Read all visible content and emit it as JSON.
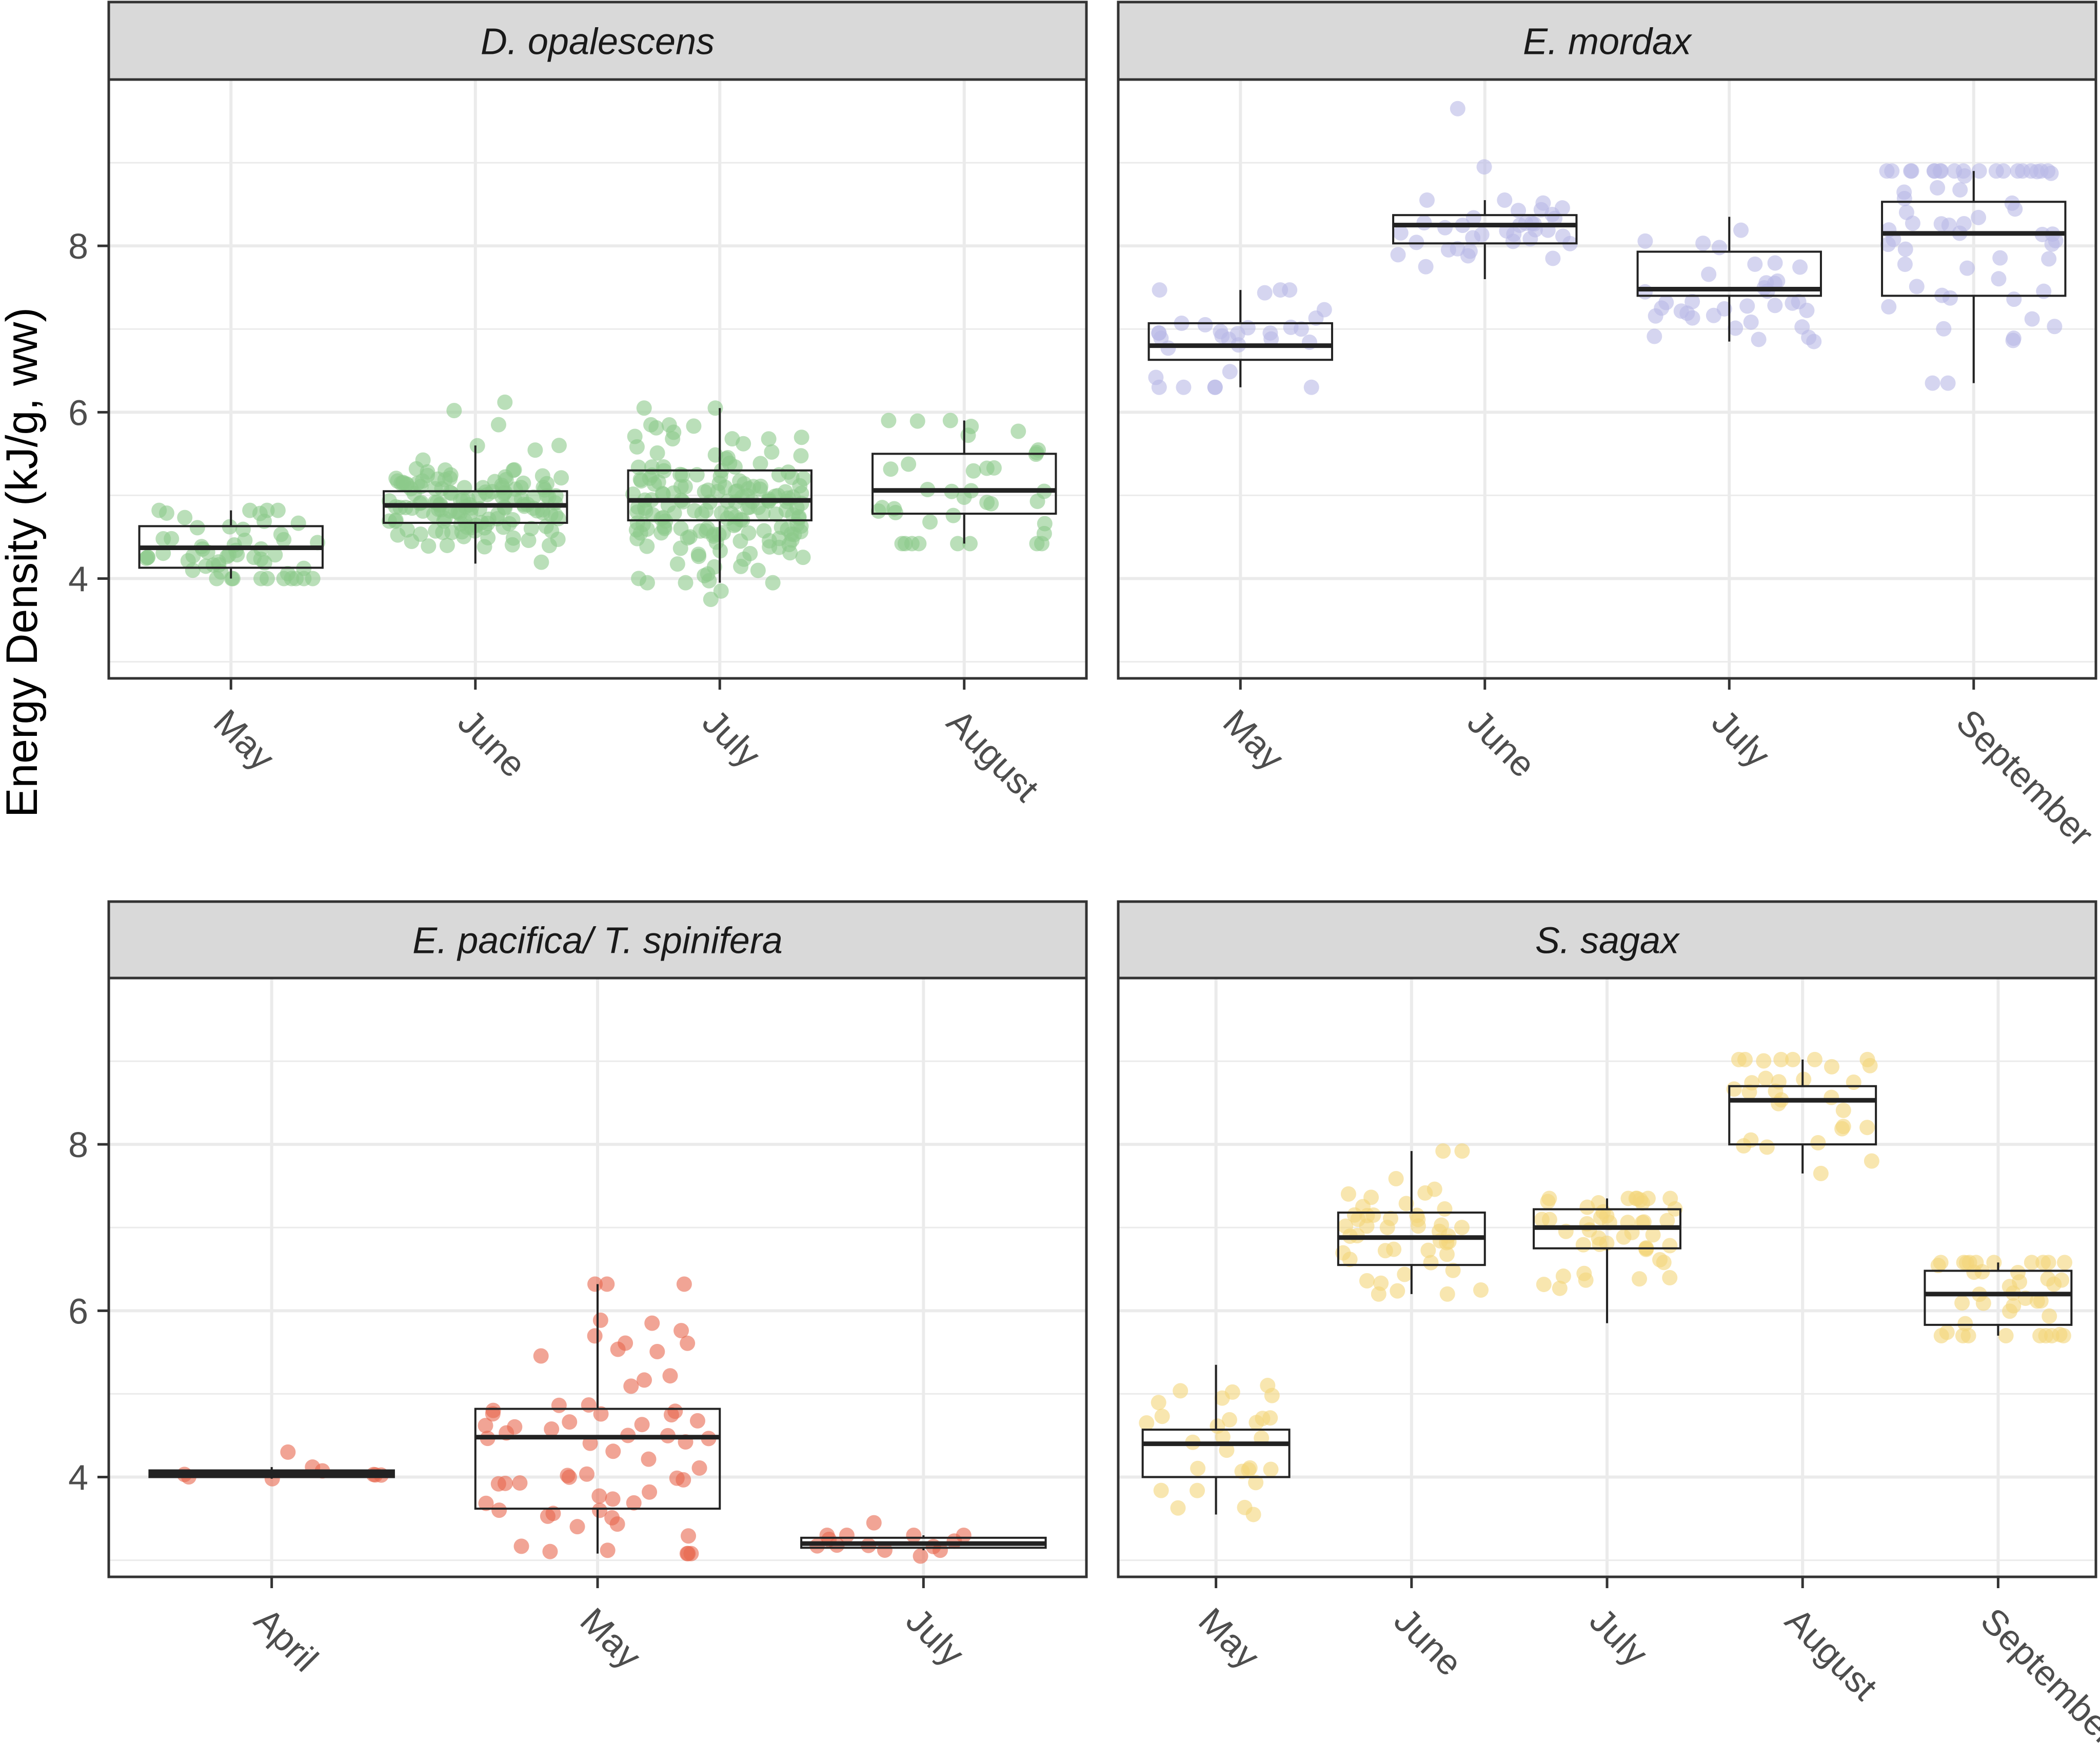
{
  "figure": {
    "y_axis_label": "Energy Density (kJ/g, ww)",
    "colors": {
      "D. opalescens": "#8cc98a",
      "E. mordax": "#b9b9e6",
      "E. pacifica/ T. spinifera": "#e8684f",
      "S. sagax": "#f3d57a",
      "strip": "#d9d9d9",
      "grid": "#ebebeb",
      "frame": "#333333"
    }
  },
  "chart_data": [
    {
      "type": "box",
      "title": "D. opalescens",
      "ylabel": "Energy Density (kJ/g, ww)",
      "ylim": [
        2.8,
        10.0
      ],
      "yticks": [
        4,
        6,
        8
      ],
      "categories": [
        "May",
        "June",
        "July",
        "August"
      ],
      "boxes": [
        {
          "category": "May",
          "min": 4.0,
          "q1": 4.13,
          "median": 4.37,
          "q3": 4.63,
          "max": 4.82,
          "n": 55
        },
        {
          "category": "June",
          "min": 4.18,
          "q1": 4.67,
          "median": 4.88,
          "q3": 5.05,
          "max": 5.6,
          "n": 140
        },
        {
          "category": "July",
          "min": 3.95,
          "q1": 4.7,
          "median": 4.94,
          "q3": 5.3,
          "max": 6.05,
          "n": 170
        },
        {
          "category": "August",
          "min": 4.42,
          "q1": 4.78,
          "median": 5.06,
          "q3": 5.5,
          "max": 5.9,
          "n": 38
        }
      ],
      "outliers": [
        {
          "category": "July",
          "value": 3.75
        },
        {
          "category": "July",
          "value": 3.85
        },
        {
          "category": "June",
          "value": 5.85
        },
        {
          "category": "June",
          "value": 6.02
        },
        {
          "category": "June",
          "value": 6.12
        }
      ]
    },
    {
      "type": "box",
      "title": "E. mordax",
      "ylabel": "Energy Density (kJ/g, ww)",
      "ylim": [
        2.8,
        10.0
      ],
      "yticks": [
        4,
        6,
        8
      ],
      "categories": [
        "May",
        "June",
        "July",
        "September"
      ],
      "boxes": [
        {
          "category": "May",
          "min": 6.3,
          "q1": 6.63,
          "median": 6.8,
          "q3": 7.07,
          "max": 7.47,
          "n": 30
        },
        {
          "category": "June",
          "min": 7.6,
          "q1": 8.03,
          "median": 8.25,
          "q3": 8.37,
          "max": 8.55,
          "n": 35
        },
        {
          "category": "July",
          "min": 6.85,
          "q1": 7.4,
          "median": 7.48,
          "q3": 7.93,
          "max": 8.35,
          "n": 35
        },
        {
          "category": "September",
          "min": 6.35,
          "q1": 7.4,
          "median": 8.15,
          "q3": 8.53,
          "max": 8.9,
          "n": 60
        }
      ],
      "outliers": [
        {
          "category": "June",
          "value": 9.65
        },
        {
          "category": "June",
          "value": 8.95
        }
      ]
    },
    {
      "type": "box",
      "title": "E. pacifica/ T. spinifera",
      "ylabel": "Energy Density (kJ/g, ww)",
      "ylim": [
        2.8,
        10.0
      ],
      "yticks": [
        4,
        6,
        8
      ],
      "categories": [
        "April",
        "May",
        "July"
      ],
      "boxes": [
        {
          "category": "April",
          "min": 3.98,
          "q1": 4.0,
          "median": 4.04,
          "q3": 4.08,
          "max": 4.12,
          "n": 8
        },
        {
          "category": "May",
          "min": 3.08,
          "q1": 3.62,
          "median": 4.48,
          "q3": 4.82,
          "max": 6.32,
          "n": 65
        },
        {
          "category": "July",
          "min": 3.12,
          "q1": 3.15,
          "median": 3.2,
          "q3": 3.27,
          "max": 3.3,
          "n": 12
        }
      ],
      "outliers": [
        {
          "category": "April",
          "value": 4.3
        },
        {
          "category": "July",
          "value": 3.45
        },
        {
          "category": "July",
          "value": 3.05
        }
      ]
    },
    {
      "type": "box",
      "title": "S. sagax",
      "ylabel": "Energy Density (kJ/g, ww)",
      "ylim": [
        2.8,
        10.0
      ],
      "yticks": [
        4,
        6,
        8
      ],
      "categories": [
        "May",
        "June",
        "July",
        "August",
        "September"
      ],
      "boxes": [
        {
          "category": "May",
          "min": 3.55,
          "q1": 4.0,
          "median": 4.4,
          "q3": 4.57,
          "max": 5.35,
          "n": 28
        },
        {
          "category": "June",
          "min": 6.2,
          "q1": 6.55,
          "median": 6.88,
          "q3": 7.18,
          "max": 7.92,
          "n": 45
        },
        {
          "category": "July",
          "min": 5.85,
          "q1": 6.75,
          "median": 7.0,
          "q3": 7.22,
          "max": 7.35,
          "n": 45
        },
        {
          "category": "August",
          "min": 7.65,
          "q1": 8.0,
          "median": 8.53,
          "q3": 8.7,
          "max": 9.02,
          "n": 30
        },
        {
          "category": "September",
          "min": 5.7,
          "q1": 5.83,
          "median": 6.2,
          "q3": 6.48,
          "max": 6.58,
          "n": 40
        }
      ],
      "outliers": []
    }
  ]
}
